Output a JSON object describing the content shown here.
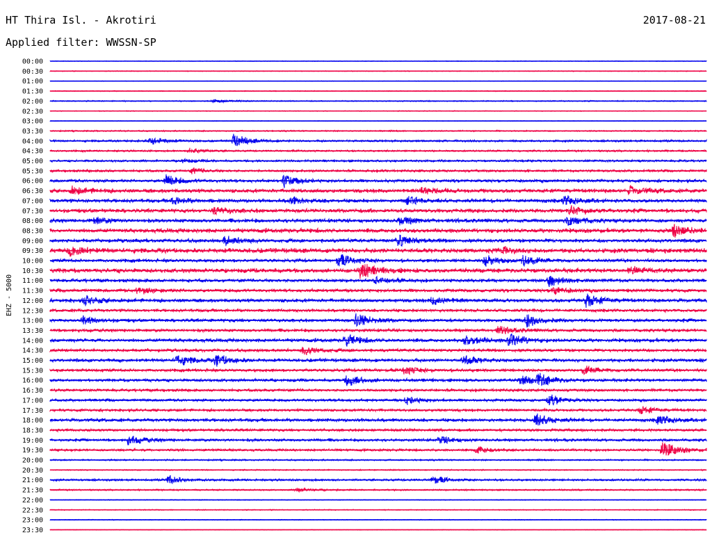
{
  "header": {
    "station": "HT Thira Isl. - Akrotiri",
    "date": "2017-08-21",
    "filter": "Applied filter: WWSSN-SP"
  },
  "chart_data": {
    "type": "line",
    "ylabel": "EHZ - 5000",
    "rows": [
      "00:00",
      "00:30",
      "01:00",
      "01:30",
      "02:00",
      "02:30",
      "03:00",
      "03:30",
      "04:00",
      "04:30",
      "05:00",
      "05:30",
      "06:00",
      "06:30",
      "07:00",
      "07:30",
      "08:00",
      "08:30",
      "09:00",
      "09:30",
      "10:00",
      "10:30",
      "11:00",
      "11:30",
      "12:00",
      "12:30",
      "13:00",
      "13:30",
      "14:00",
      "14:30",
      "15:00",
      "15:30",
      "16:00",
      "16:30",
      "17:00",
      "17:30",
      "18:00",
      "18:30",
      "19:00",
      "19:30",
      "20:00",
      "20:30",
      "21:00",
      "21:30",
      "22:00",
      "22:30",
      "23:00",
      "23:30"
    ],
    "series_colors": [
      "#0000ee",
      "#ee0044"
    ],
    "noise_level": [
      0.3,
      0.4,
      0.3,
      0.4,
      0.6,
      0.4,
      0.3,
      0.7,
      1.2,
      1.0,
      1.2,
      1.4,
      1.8,
      2.4,
      2.2,
      2.4,
      2.2,
      2.6,
      2.2,
      2.8,
      2.0,
      2.6,
      2.0,
      2.0,
      2.2,
      1.8,
      2.0,
      1.8,
      2.2,
      1.8,
      2.0,
      1.8,
      1.8,
      1.6,
      1.6,
      1.6,
      2.0,
      1.6,
      1.6,
      1.4,
      0.8,
      0.6,
      1.2,
      0.8,
      0.4,
      0.5,
      0.4,
      0.3
    ],
    "events": [
      {
        "row": 4,
        "time_min": 7.5,
        "amp": 3
      },
      {
        "row": 8,
        "time_min": 4.6,
        "amp": 6
      },
      {
        "row": 8,
        "time_min": 8.4,
        "amp": 10
      },
      {
        "row": 9,
        "time_min": 6.4,
        "amp": 4
      },
      {
        "row": 10,
        "time_min": 6.0,
        "amp": 3
      },
      {
        "row": 11,
        "time_min": 6.5,
        "amp": 4
      },
      {
        "row": 12,
        "time_min": 5.3,
        "amp": 8
      },
      {
        "row": 12,
        "time_min": 10.7,
        "amp": 9
      },
      {
        "row": 13,
        "time_min": 1.0,
        "amp": 5
      },
      {
        "row": 13,
        "time_min": 17.0,
        "amp": 5
      },
      {
        "row": 13,
        "time_min": 26.5,
        "amp": 6
      },
      {
        "row": 14,
        "time_min": 5.6,
        "amp": 5
      },
      {
        "row": 14,
        "time_min": 11.0,
        "amp": 5
      },
      {
        "row": 14,
        "time_min": 16.3,
        "amp": 6
      },
      {
        "row": 14,
        "time_min": 23.5,
        "amp": 7
      },
      {
        "row": 15,
        "time_min": 7.5,
        "amp": 6
      },
      {
        "row": 15,
        "time_min": 23.8,
        "amp": 7
      },
      {
        "row": 16,
        "time_min": 2.0,
        "amp": 5
      },
      {
        "row": 16,
        "time_min": 16.0,
        "amp": 6
      },
      {
        "row": 16,
        "time_min": 23.7,
        "amp": 8
      },
      {
        "row": 17,
        "time_min": 28.5,
        "amp": 8
      },
      {
        "row": 18,
        "time_min": 8.0,
        "amp": 6
      },
      {
        "row": 18,
        "time_min": 15.9,
        "amp": 9
      },
      {
        "row": 19,
        "time_min": 0.9,
        "amp": 7
      },
      {
        "row": 19,
        "time_min": 20.5,
        "amp": 5
      },
      {
        "row": 20,
        "time_min": 13.2,
        "amp": 9
      },
      {
        "row": 20,
        "time_min": 19.9,
        "amp": 8
      },
      {
        "row": 20,
        "time_min": 21.6,
        "amp": 8
      },
      {
        "row": 21,
        "time_min": 14.2,
        "amp": 11
      },
      {
        "row": 21,
        "time_min": 26.5,
        "amp": 5
      },
      {
        "row": 22,
        "time_min": 14.9,
        "amp": 5
      },
      {
        "row": 22,
        "time_min": 22.8,
        "amp": 8
      },
      {
        "row": 23,
        "time_min": 4.0,
        "amp": 5
      },
      {
        "row": 23,
        "time_min": 23.0,
        "amp": 5
      },
      {
        "row": 24,
        "time_min": 1.6,
        "amp": 6
      },
      {
        "row": 24,
        "time_min": 17.5,
        "amp": 6
      },
      {
        "row": 24,
        "time_min": 24.5,
        "amp": 10
      },
      {
        "row": 26,
        "time_min": 1.5,
        "amp": 6
      },
      {
        "row": 26,
        "time_min": 14.0,
        "amp": 10
      },
      {
        "row": 26,
        "time_min": 21.8,
        "amp": 9
      },
      {
        "row": 27,
        "time_min": 20.5,
        "amp": 5
      },
      {
        "row": 28,
        "time_min": 13.5,
        "amp": 8
      },
      {
        "row": 28,
        "time_min": 19.0,
        "amp": 8
      },
      {
        "row": 28,
        "time_min": 21.0,
        "amp": 10
      },
      {
        "row": 29,
        "time_min": 11.6,
        "amp": 6
      },
      {
        "row": 30,
        "time_min": 5.8,
        "amp": 8
      },
      {
        "row": 30,
        "time_min": 7.6,
        "amp": 8
      },
      {
        "row": 30,
        "time_min": 18.9,
        "amp": 7
      },
      {
        "row": 31,
        "time_min": 16.2,
        "amp": 6
      },
      {
        "row": 31,
        "time_min": 24.4,
        "amp": 6
      },
      {
        "row": 32,
        "time_min": 13.6,
        "amp": 9
      },
      {
        "row": 32,
        "time_min": 21.5,
        "amp": 7
      },
      {
        "row": 32,
        "time_min": 22.3,
        "amp": 9
      },
      {
        "row": 34,
        "time_min": 16.3,
        "amp": 6
      },
      {
        "row": 34,
        "time_min": 22.8,
        "amp": 8
      },
      {
        "row": 35,
        "time_min": 27.0,
        "amp": 6
      },
      {
        "row": 36,
        "time_min": 22.2,
        "amp": 9
      },
      {
        "row": 36,
        "time_min": 27.8,
        "amp": 7
      },
      {
        "row": 38,
        "time_min": 3.6,
        "amp": 8
      },
      {
        "row": 38,
        "time_min": 17.8,
        "amp": 5
      },
      {
        "row": 39,
        "time_min": 19.5,
        "amp": 5
      },
      {
        "row": 39,
        "time_min": 28.0,
        "amp": 13
      },
      {
        "row": 42,
        "time_min": 5.4,
        "amp": 7
      },
      {
        "row": 42,
        "time_min": 17.5,
        "amp": 6
      },
      {
        "row": 43,
        "time_min": 11.3,
        "amp": 3
      }
    ]
  }
}
